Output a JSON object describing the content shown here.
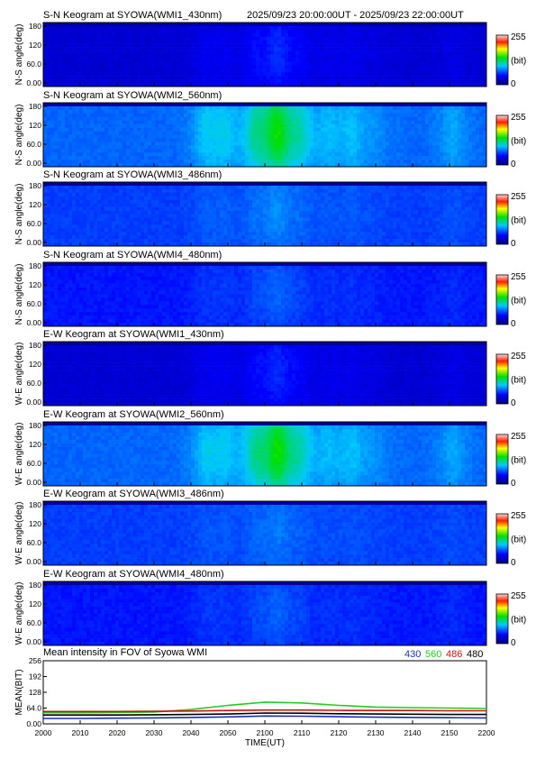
{
  "header": {
    "time_range": "2025/09/23 20:00:00UT - 2025/09/23 22:00:00UT"
  },
  "colorbar": {
    "max_label": "255",
    "unit_label": "(bit)",
    "min_label": "0"
  },
  "x_axis": {
    "label": "TIME(UT)",
    "ticks": [
      "2000",
      "2010",
      "2020",
      "2030",
      "2040",
      "2050",
      "2100",
      "2110",
      "2120",
      "2130",
      "2140",
      "2150",
      "2200"
    ]
  },
  "keograms": [
    {
      "title": "S-N Keogram at SYOWA(WMI1_430nm)",
      "ylabel": "N-S angle(deg)",
      "yticks": [
        "180",
        "120",
        "60.0",
        "0.00"
      ],
      "base_level": 0.12,
      "peak_level": 0.22,
      "has_header": true
    },
    {
      "title": "S-N Keogram at SYOWA(WMI2_560nm)",
      "ylabel": "N-S angle(deg)",
      "yticks": [
        "180",
        "120",
        "60.0",
        "0.00"
      ],
      "base_level": 0.28,
      "peak_level": 0.55
    },
    {
      "title": "S-N Keogram at SYOWA(WMI3_486nm)",
      "ylabel": "N-S angle(deg)",
      "yticks": [
        "180",
        "120",
        "60.0",
        "0.00"
      ],
      "base_level": 0.24,
      "peak_level": 0.32
    },
    {
      "title": "S-N Keogram at SYOWA(WMI4_480nm)",
      "ylabel": "N-S angle(deg)",
      "yticks": [
        "180",
        "120",
        "60.0",
        "0.00"
      ],
      "base_level": 0.2,
      "peak_level": 0.28
    },
    {
      "title": "E-W Keogram at SYOWA(WMI1_430nm)",
      "ylabel": "W-E angle(deg)",
      "yticks": [
        "180",
        "120",
        "60.0",
        "0.00"
      ],
      "base_level": 0.12,
      "peak_level": 0.22
    },
    {
      "title": "E-W Keogram at SYOWA(WMI2_560nm)",
      "ylabel": "W-E angle(deg)",
      "yticks": [
        "180",
        "120",
        "60.0",
        "0.00"
      ],
      "base_level": 0.28,
      "peak_level": 0.55
    },
    {
      "title": "E-W Keogram at SYOWA(WMI3_486nm)",
      "ylabel": "W-E angle(deg)",
      "yticks": [
        "180",
        "120",
        "60.0",
        "0.00"
      ],
      "base_level": 0.24,
      "peak_level": 0.3
    },
    {
      "title": "E-W Keogram at SYOWA(WMI4_480nm)",
      "ylabel": "W-E angle(deg)",
      "yticks": [
        "180",
        "120",
        "60.0",
        "0.00"
      ],
      "base_level": 0.2,
      "peak_level": 0.28
    }
  ],
  "mean_panel": {
    "title": "Mean intensity in FOV of Syowa WMI",
    "ylabel": "MEAN(BIT)",
    "yticks": [
      "256",
      "192",
      "128",
      "64.0",
      "0.00"
    ],
    "legend": [
      {
        "label": "430",
        "color": "#1a2fb5"
      },
      {
        "label": "560",
        "color": "#22cc22"
      },
      {
        "label": "486",
        "color": "#cc1111"
      },
      {
        "label": "480",
        "color": "#000000"
      }
    ]
  },
  "chart_data": {
    "type": "line",
    "title": "Mean intensity in FOV of Syowa WMI",
    "xlabel": "TIME(UT)",
    "ylabel": "MEAN(BIT)",
    "ylim": [
      0,
      256
    ],
    "x": [
      "2000",
      "2010",
      "2020",
      "2030",
      "2040",
      "2050",
      "2100",
      "2110",
      "2120",
      "2130",
      "2140",
      "2150",
      "2200"
    ],
    "series": [
      {
        "name": "430",
        "color": "#1a2fb5",
        "values": [
          22,
          22,
          23,
          24,
          26,
          28,
          32,
          31,
          29,
          27,
          26,
          25,
          24
        ]
      },
      {
        "name": "560",
        "color": "#22cc22",
        "values": [
          45,
          45,
          46,
          48,
          58,
          75,
          88,
          85,
          75,
          68,
          66,
          64,
          62
        ]
      },
      {
        "name": "486",
        "color": "#cc1111",
        "values": [
          50,
          50,
          50,
          51,
          52,
          54,
          56,
          56,
          55,
          54,
          54,
          53,
          53
        ]
      },
      {
        "name": "480",
        "color": "#000000",
        "values": [
          36,
          36,
          36,
          37,
          38,
          40,
          44,
          43,
          41,
          40,
          39,
          38,
          38
        ]
      }
    ]
  }
}
